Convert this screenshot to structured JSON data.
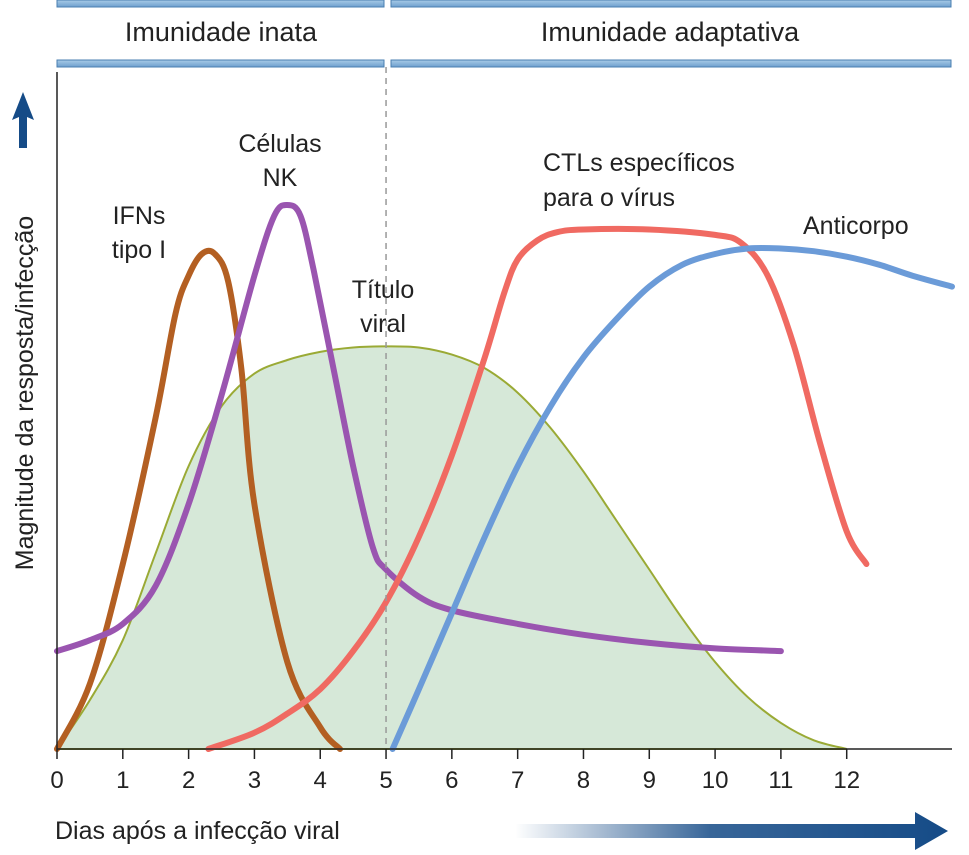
{
  "header": {
    "innate_label": "Imunidade inata",
    "adaptive_label": "Imunidade adaptativa"
  },
  "chart_data": {
    "type": "line",
    "title": "",
    "xlabel": "Dias após a infecção viral",
    "ylabel": "Magnitude da resposta/infecção",
    "xlim": [
      0,
      13.6
    ],
    "ylim": [
      0,
      1
    ],
    "x_ticks": [
      "0",
      "1",
      "2",
      "3",
      "4",
      "5",
      "6",
      "7",
      "8",
      "9",
      "10",
      "11",
      "12"
    ],
    "divider_day": 5,
    "grid": false,
    "legend": "none",
    "series": [
      {
        "name": "Título viral",
        "style": "area",
        "color": "#9aaa35",
        "fill": "#d6e8d8",
        "x": [
          0,
          0.5,
          1,
          1.5,
          2,
          2.5,
          3,
          3.5,
          4,
          4.5,
          5,
          5.5,
          6,
          6.5,
          7,
          7.5,
          8,
          8.5,
          9,
          9.5,
          10,
          10.5,
          11,
          11.5,
          12
        ],
        "y": [
          0.0,
          0.09,
          0.2,
          0.36,
          0.52,
          0.63,
          0.69,
          0.715,
          0.73,
          0.738,
          0.74,
          0.738,
          0.725,
          0.7,
          0.655,
          0.59,
          0.51,
          0.42,
          0.33,
          0.24,
          0.16,
          0.095,
          0.048,
          0.016,
          0.0
        ]
      },
      {
        "name": "IFNs tipo I",
        "color": "#b35f22",
        "x": [
          0,
          0.5,
          1,
          1.5,
          1.8,
          2,
          2.2,
          2.4,
          2.6,
          2.8,
          3,
          3.5,
          4,
          4.3
        ],
        "y": [
          0.0,
          0.12,
          0.34,
          0.61,
          0.8,
          0.87,
          0.91,
          0.91,
          0.86,
          0.7,
          0.45,
          0.16,
          0.04,
          0.0
        ]
      },
      {
        "name": "Células NK",
        "color": "#9a55b0",
        "x": [
          0,
          0.5,
          1,
          1.5,
          2,
          2.5,
          3,
          3.3,
          3.5,
          3.7,
          3.9,
          4.2,
          4.5,
          4.8,
          5,
          5.5,
          6,
          7,
          8,
          9,
          10,
          11
        ],
        "y": [
          0.18,
          0.2,
          0.23,
          0.3,
          0.45,
          0.65,
          0.87,
          0.98,
          1.0,
          0.98,
          0.88,
          0.7,
          0.52,
          0.37,
          0.33,
          0.28,
          0.255,
          0.23,
          0.21,
          0.195,
          0.185,
          0.18
        ]
      },
      {
        "name": "CTLs específicos para o vírus",
        "color": "#f06a62",
        "x": [
          2.3,
          3,
          3.5,
          4,
          4.5,
          5,
          5.5,
          6,
          6.5,
          6.8,
          7,
          7.3,
          7.6,
          8,
          9,
          10,
          10.4,
          10.8,
          11.2,
          11.6,
          12,
          12.3
        ],
        "y": [
          0.0,
          0.03,
          0.065,
          0.11,
          0.18,
          0.27,
          0.39,
          0.54,
          0.72,
          0.84,
          0.9,
          0.935,
          0.95,
          0.955,
          0.955,
          0.945,
          0.93,
          0.87,
          0.74,
          0.56,
          0.4,
          0.34
        ]
      },
      {
        "name": "Anticorpo",
        "color": "#6b9bd8",
        "x": [
          5.1,
          5.5,
          6,
          6.5,
          7,
          7.5,
          8,
          8.5,
          9,
          9.5,
          10,
          10.5,
          11,
          11.5,
          12,
          12.5,
          13,
          13.6
        ],
        "y": [
          0.0,
          0.11,
          0.25,
          0.39,
          0.52,
          0.63,
          0.72,
          0.79,
          0.85,
          0.89,
          0.91,
          0.92,
          0.92,
          0.915,
          0.905,
          0.89,
          0.87,
          0.85
        ]
      }
    ],
    "annotations": {
      "ifn": [
        "IFNs",
        "tipo I"
      ],
      "nk": [
        "Células",
        "NK"
      ],
      "viral": [
        "Título",
        "viral"
      ],
      "ctl": [
        "CTLs específicos",
        "para o vírus"
      ],
      "antibody": "Anticorpo"
    }
  },
  "colors": {
    "header_bar": "#8ab6dc",
    "header_bar_edge": "#4a7fb0",
    "axis_arrow": "#154b87"
  }
}
